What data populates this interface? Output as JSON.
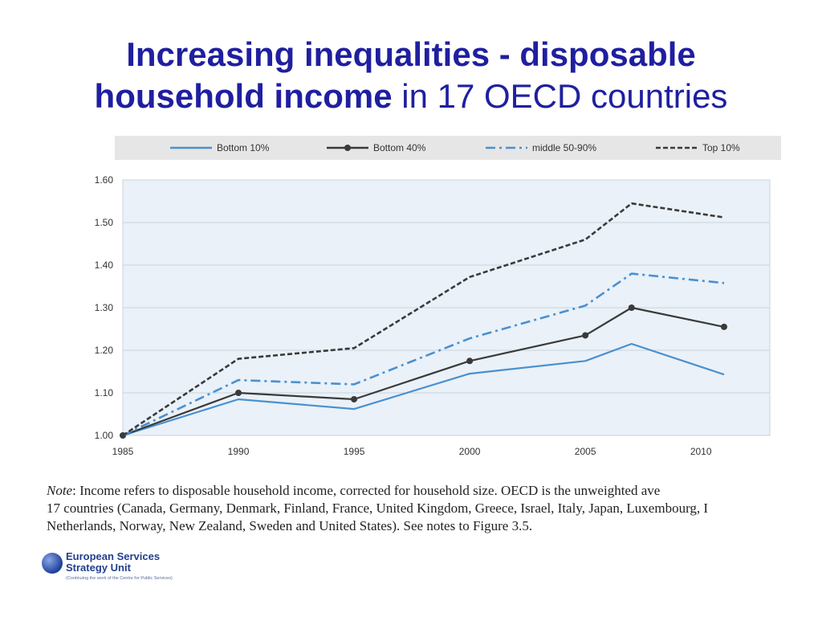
{
  "title": {
    "line1": "Increasing inequalities - disposable",
    "line2_bold": "household income",
    "line2_rest": " in 17 OECD countries"
  },
  "chart_data": {
    "type": "line",
    "title": "Increasing inequalities - disposable household income in 17 OECD countries",
    "xlabel": "",
    "ylabel": "",
    "xlim": [
      1985,
      2013
    ],
    "ylim": [
      1.0,
      1.6
    ],
    "x_ticks": [
      1985,
      1990,
      1995,
      2000,
      2005,
      2010
    ],
    "x_tick_labels": [
      "1985",
      "1990",
      "1995",
      "2000",
      "2005",
      "2010"
    ],
    "y_ticks": [
      1.0,
      1.1,
      1.2,
      1.3,
      1.4,
      1.5,
      1.6
    ],
    "y_tick_labels": [
      "1.00",
      "1.10",
      "1.20",
      "1.30",
      "1.40",
      "1.50",
      "1.60"
    ],
    "x": [
      1985,
      1990,
      1995,
      2000,
      2005,
      2007,
      2011
    ],
    "grid": true,
    "legend_position": "top",
    "series": [
      {
        "name": "Bottom 10%",
        "values": [
          1.0,
          1.085,
          1.062,
          1.145,
          1.175,
          1.215,
          1.143
        ],
        "color": "#4a90d0",
        "style": "solid",
        "markers": false
      },
      {
        "name": "Bottom 40%",
        "values": [
          1.0,
          1.1,
          1.085,
          1.175,
          1.235,
          1.3,
          1.255
        ],
        "color": "#3a3a3a",
        "style": "solid",
        "markers": true
      },
      {
        "name": "middle 50-90%",
        "values": [
          1.0,
          1.13,
          1.12,
          1.228,
          1.305,
          1.38,
          1.358
        ],
        "color": "#4a90d0",
        "style": "dashdot",
        "markers": false
      },
      {
        "name": "Top 10%",
        "values": [
          1.0,
          1.18,
          1.205,
          1.372,
          1.46,
          1.545,
          1.512
        ],
        "color": "#3a3a3a",
        "style": "dashed",
        "markers": false
      }
    ]
  },
  "note": {
    "label": "Note",
    "line1": ": Income refers to disposable household income, corrected for household size. OECD is the unweighted ave",
    "line2": "17 countries (Canada, Germany, Denmark, Finland, France, United Kingdom, Greece, Israel, Italy, Japan, Luxembourg, I",
    "line3": "Netherlands, Norway, New Zealand, Sweden and United States). See notes to Figure 3.5."
  },
  "logo": {
    "line1": "European Services",
    "line2": "Strategy Unit",
    "sub": "(Continuing the work of the Centre for Public Services)"
  }
}
